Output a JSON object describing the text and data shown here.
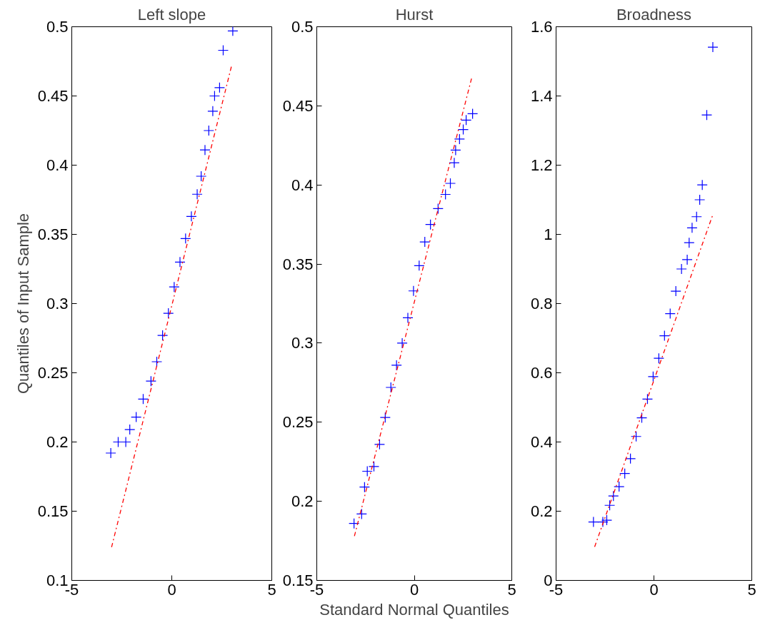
{
  "chart_data": [
    {
      "type": "scatter",
      "title": "Left slope",
      "ylabel": "Quantiles of Input Sample",
      "xlim": [
        -5,
        5
      ],
      "ylim": [
        0.1,
        0.5
      ],
      "xticks": [
        -5,
        0,
        5
      ],
      "yticks": [
        0.1,
        0.15,
        0.2,
        0.25,
        0.3,
        0.35,
        0.4,
        0.45,
        0.5
      ],
      "grid": false,
      "marker": "cross",
      "series": [
        {
          "color": "#0000ff",
          "x": [
            -3.05,
            -2.68,
            -2.3,
            -2.1,
            -1.78,
            -1.43,
            -1.04,
            -0.75,
            -0.46,
            -0.17,
            0.12,
            0.41,
            0.69,
            0.98,
            1.27,
            1.47,
            1.66,
            1.85,
            2.05,
            2.14,
            2.39,
            2.57,
            3.05
          ],
          "values": [
            0.192,
            0.2,
            0.2,
            0.209,
            0.218,
            0.231,
            0.244,
            0.258,
            0.277,
            0.293,
            0.312,
            0.33,
            0.347,
            0.363,
            0.379,
            0.392,
            0.411,
            0.425,
            0.439,
            0.45,
            0.456,
            0.483,
            0.497
          ]
        },
        {
          "type": "line",
          "color": "#ff0000",
          "line_style": "dashdot",
          "marker": "none",
          "x": [
            -3.01,
            3.01
          ],
          "values": [
            0.124,
            0.473
          ]
        }
      ]
    },
    {
      "type": "scatter",
      "title": "Hurst",
      "xlabel": "Standard Normal Quantiles",
      "xlim": [
        -5,
        5
      ],
      "ylim": [
        0.15,
        0.5
      ],
      "xticks": [
        -5,
        0,
        5
      ],
      "yticks": [
        0.15,
        0.2,
        0.25,
        0.3,
        0.35,
        0.4,
        0.45,
        0.5
      ],
      "grid": false,
      "marker": "cross",
      "series": [
        {
          "color": "#0000ff",
          "x": [
            -3.09,
            -2.7,
            -2.55,
            -2.41,
            -2.07,
            -1.78,
            -1.49,
            -1.2,
            -0.91,
            -0.62,
            -0.33,
            -0.04,
            0.25,
            0.54,
            0.83,
            1.22,
            1.6,
            1.85,
            2.05,
            2.12,
            2.32,
            2.51,
            2.66,
            2.99
          ],
          "values": [
            0.186,
            0.192,
            0.209,
            0.219,
            0.222,
            0.236,
            0.253,
            0.272,
            0.286,
            0.3,
            0.316,
            0.333,
            0.349,
            0.364,
            0.375,
            0.385,
            0.394,
            0.401,
            0.414,
            0.422,
            0.429,
            0.435,
            0.441,
            0.445
          ]
        },
        {
          "type": "line",
          "color": "#ff0000",
          "line_style": "dashdot",
          "marker": "none",
          "x": [
            -3.07,
            2.95
          ],
          "values": [
            0.178,
            0.468
          ]
        }
      ]
    },
    {
      "type": "scatter",
      "title": "Broadness",
      "xlim": [
        -5,
        5
      ],
      "ylim": [
        0,
        1.6
      ],
      "xticks": [
        -5,
        0,
        5
      ],
      "yticks": [
        0,
        0.2,
        0.4,
        0.6,
        0.8,
        1,
        1.2,
        1.4,
        1.6
      ],
      "grid": false,
      "marker": "cross",
      "series": [
        {
          "color": "#0000ff",
          "x": [
            -3.09,
            -2.61,
            -2.41,
            -2.26,
            -2.07,
            -1.78,
            -1.49,
            -1.2,
            -0.91,
            -0.62,
            -0.33,
            -0.04,
            0.25,
            0.54,
            0.83,
            1.12,
            1.41,
            1.7,
            1.8,
            1.95,
            2.18,
            2.34,
            2.47,
            2.7,
            3.01
          ],
          "values": [
            0.169,
            0.169,
            0.174,
            0.217,
            0.244,
            0.271,
            0.309,
            0.352,
            0.416,
            0.47,
            0.524,
            0.589,
            0.642,
            0.707,
            0.771,
            0.836,
            0.9,
            0.927,
            0.976,
            1.019,
            1.051,
            1.1,
            1.143,
            1.345,
            1.541
          ]
        },
        {
          "type": "line",
          "color": "#ff0000",
          "line_style": "dashdot",
          "marker": "none",
          "x": [
            -3.03,
            3.01
          ],
          "values": [
            0.097,
            1.057
          ]
        }
      ]
    }
  ]
}
